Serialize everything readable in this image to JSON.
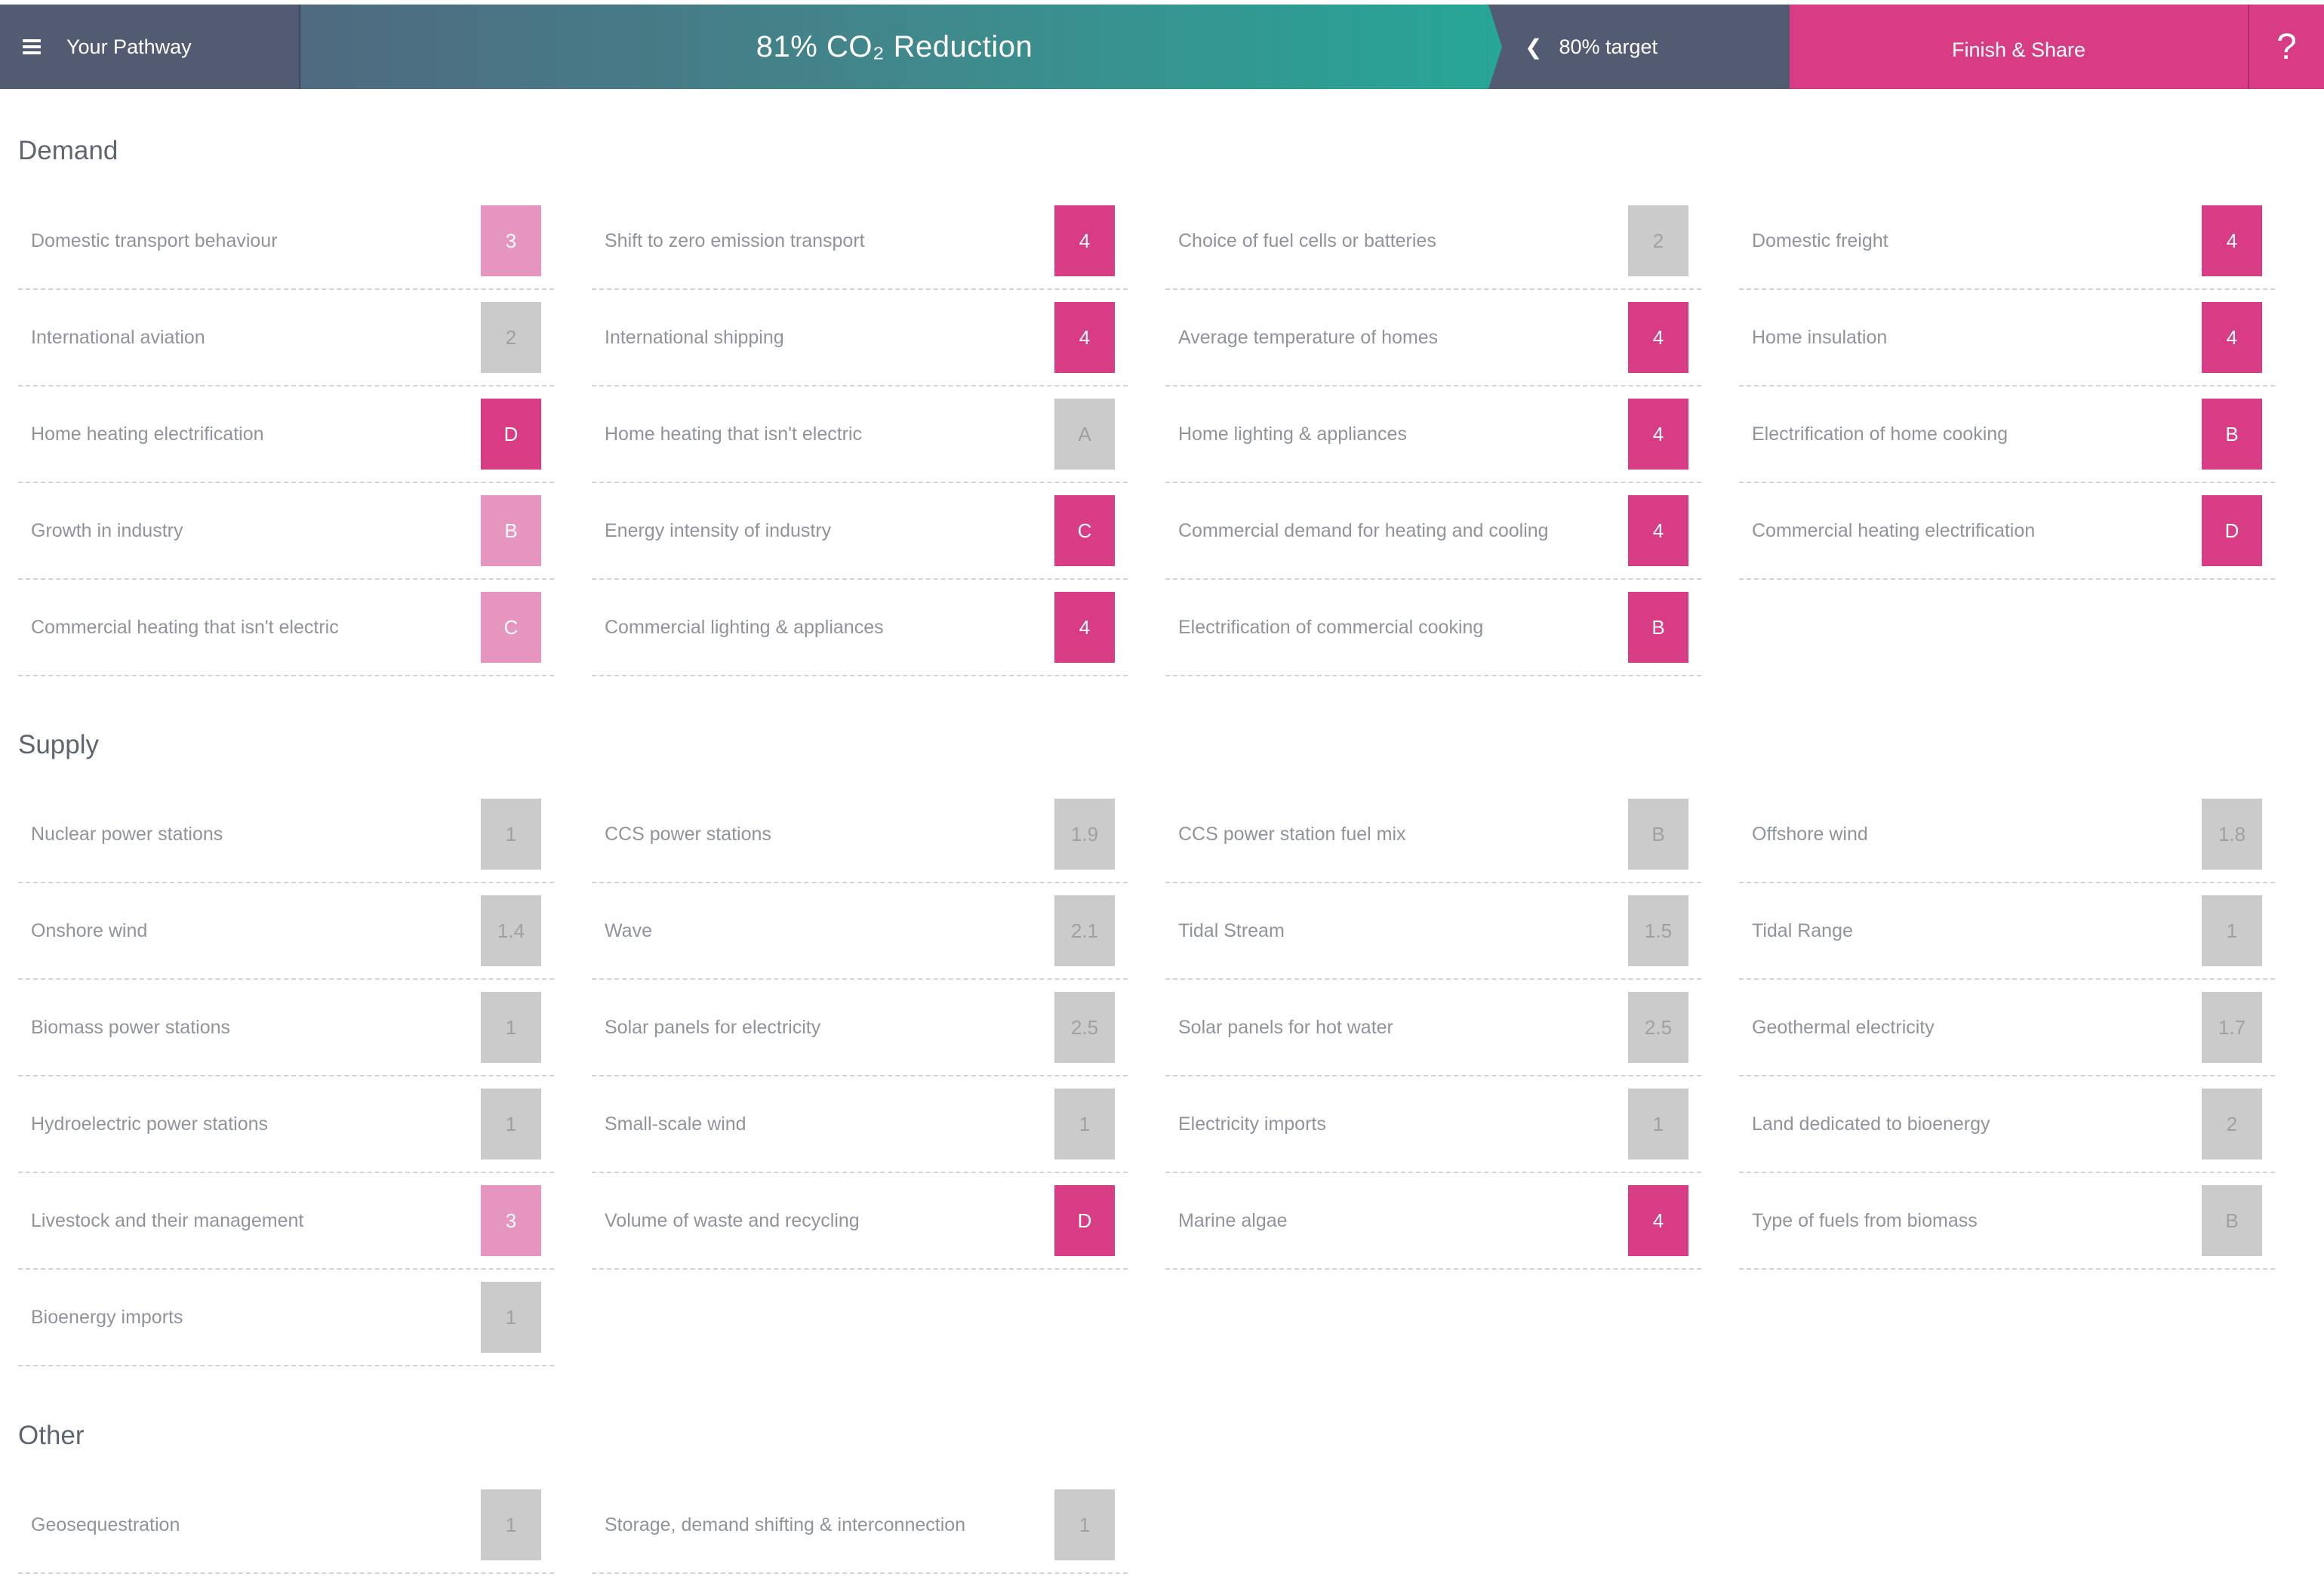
{
  "topbar": {
    "menu_label": "Your Pathway",
    "reduction_label": "81% CO₂ Reduction",
    "target_label": "80% target",
    "finish_label": "Finish & Share",
    "help_label": "?"
  },
  "sections": {
    "demand": {
      "title": "Demand",
      "items": [
        {
          "label": "Domestic transport behaviour",
          "value": "3",
          "style": "pink"
        },
        {
          "label": "Shift to zero emission transport",
          "value": "4",
          "style": "magenta"
        },
        {
          "label": "Choice of fuel cells or batteries",
          "value": "2",
          "style": "grey"
        },
        {
          "label": "Domestic freight",
          "value": "4",
          "style": "magenta"
        },
        {
          "label": "International aviation",
          "value": "2",
          "style": "grey"
        },
        {
          "label": "International shipping",
          "value": "4",
          "style": "magenta"
        },
        {
          "label": "Average temperature of homes",
          "value": "4",
          "style": "magenta"
        },
        {
          "label": "Home insulation",
          "value": "4",
          "style": "magenta"
        },
        {
          "label": "Home heating electrification",
          "value": "D",
          "style": "magenta"
        },
        {
          "label": "Home heating that isn't electric",
          "value": "A",
          "style": "grey"
        },
        {
          "label": "Home lighting & appliances",
          "value": "4",
          "style": "magenta"
        },
        {
          "label": "Electrification of home cooking",
          "value": "B",
          "style": "magenta"
        },
        {
          "label": "Growth in industry",
          "value": "B",
          "style": "pink"
        },
        {
          "label": "Energy intensity of industry",
          "value": "C",
          "style": "magenta"
        },
        {
          "label": "Commercial demand for heating and cooling",
          "value": "4",
          "style": "magenta"
        },
        {
          "label": "Commercial heating electrification",
          "value": "D",
          "style": "magenta"
        },
        {
          "label": "Commercial heating that isn't electric",
          "value": "C",
          "style": "pink"
        },
        {
          "label": "Commercial lighting & appliances",
          "value": "4",
          "style": "magenta"
        },
        {
          "label": "Electrification of commercial cooking",
          "value": "B",
          "style": "magenta"
        }
      ]
    },
    "supply": {
      "title": "Supply",
      "items": [
        {
          "label": "Nuclear power stations",
          "value": "1",
          "style": "grey"
        },
        {
          "label": "CCS power stations",
          "value": "1.9",
          "style": "grey"
        },
        {
          "label": "CCS power station fuel mix",
          "value": "B",
          "style": "grey"
        },
        {
          "label": "Offshore wind",
          "value": "1.8",
          "style": "grey"
        },
        {
          "label": "Onshore wind",
          "value": "1.4",
          "style": "grey"
        },
        {
          "label": "Wave",
          "value": "2.1",
          "style": "grey"
        },
        {
          "label": "Tidal Stream",
          "value": "1.5",
          "style": "grey"
        },
        {
          "label": "Tidal Range",
          "value": "1",
          "style": "grey"
        },
        {
          "label": "Biomass power stations",
          "value": "1",
          "style": "grey"
        },
        {
          "label": "Solar panels for electricity",
          "value": "2.5",
          "style": "grey"
        },
        {
          "label": "Solar panels for hot water",
          "value": "2.5",
          "style": "grey"
        },
        {
          "label": "Geothermal electricity",
          "value": "1.7",
          "style": "grey"
        },
        {
          "label": "Hydroelectric power stations",
          "value": "1",
          "style": "grey"
        },
        {
          "label": "Small-scale wind",
          "value": "1",
          "style": "grey"
        },
        {
          "label": "Electricity imports",
          "value": "1",
          "style": "grey"
        },
        {
          "label": "Land dedicated to bioenergy",
          "value": "2",
          "style": "grey"
        },
        {
          "label": "Livestock and their management",
          "value": "3",
          "style": "pink"
        },
        {
          "label": "Volume of waste and recycling",
          "value": "D",
          "style": "magenta"
        },
        {
          "label": "Marine algae",
          "value": "4",
          "style": "magenta"
        },
        {
          "label": "Type of fuels from biomass",
          "value": "B",
          "style": "grey"
        },
        {
          "label": "Bioenergy imports",
          "value": "1",
          "style": "grey"
        }
      ]
    },
    "other": {
      "title": "Other",
      "items": [
        {
          "label": "Geosequestration",
          "value": "1",
          "style": "grey"
        },
        {
          "label": "Storage, demand shifting & interconnection",
          "value": "1",
          "style": "grey"
        }
      ]
    }
  },
  "colors": {
    "topbar_dark": "#535b72",
    "progress_start": "#4f6a80",
    "progress_end": "#27a595",
    "accent_magenta": "#d83c85",
    "pink": "#e595be",
    "grey": "#cbcbcb"
  }
}
